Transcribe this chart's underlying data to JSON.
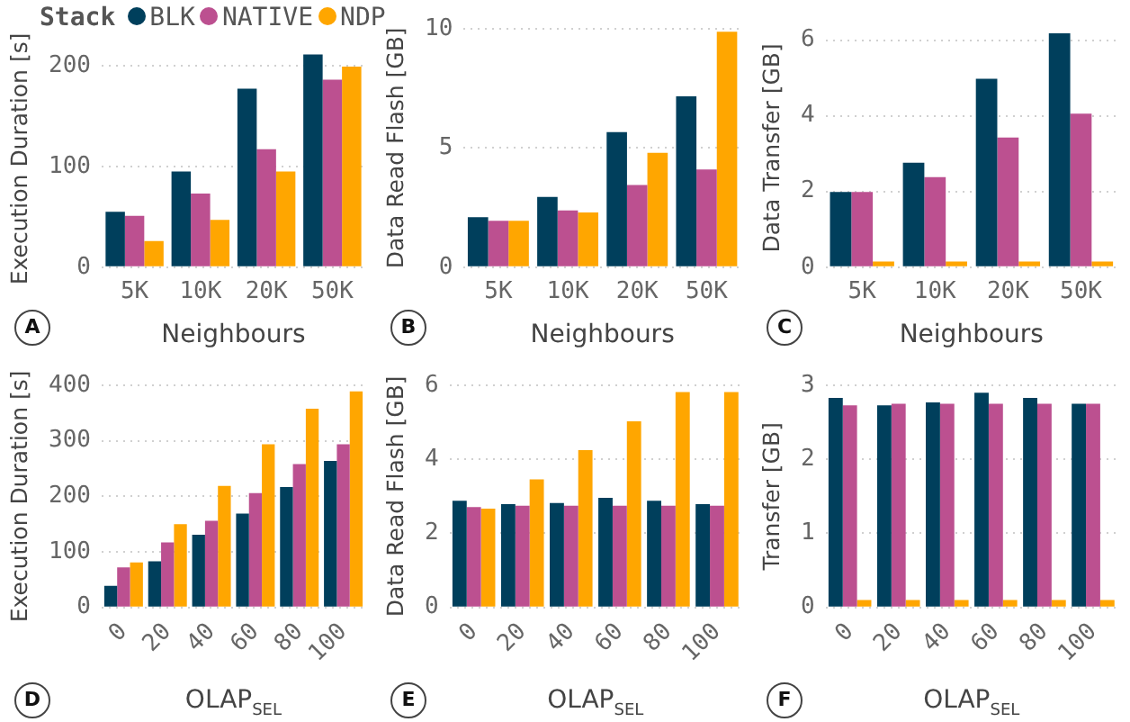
{
  "chart_data": [
    {
      "type": "bar",
      "categories": [
        "5K",
        "10K",
        "20K",
        "50K"
      ],
      "xlabel": "Neighbours",
      "ylabel": "Execution Duration [s]",
      "ylim": [
        0,
        215
      ],
      "yticks": [
        0,
        100,
        200
      ],
      "grid": "y",
      "legend": "top",
      "legend_title": "Stack",
      "annotations": [
        "A"
      ],
      "series": [
        {
          "name": "BLK",
          "color": "#003f5c",
          "values": [
            55,
            95,
            177,
            211
          ]
        },
        {
          "name": "NATIVE",
          "color": "#bc5090",
          "values": [
            51,
            73,
            117,
            186
          ]
        },
        {
          "name": "NDP",
          "color": "#ffa600",
          "values": [
            26,
            47,
            95,
            199
          ]
        }
      ]
    },
    {
      "type": "bar",
      "categories": [
        "5K",
        "10K",
        "20K",
        "50K"
      ],
      "xlabel": "Neighbours",
      "ylabel": "Data Read Flash [GB]",
      "ylim": [
        0,
        10
      ],
      "yticks": [
        0,
        5,
        10
      ],
      "grid": "y",
      "annotations": [
        "B"
      ],
      "series": [
        {
          "color": "#003f5c",
          "values": [
            2.1,
            2.95,
            5.67,
            7.17
          ]
        },
        {
          "color": "#bc5090",
          "values": [
            1.95,
            2.38,
            3.45,
            4.1
          ]
        },
        {
          "color": "#ffa600",
          "values": [
            1.95,
            2.3,
            4.8,
            9.88
          ]
        }
      ]
    },
    {
      "type": "bar",
      "categories": [
        "5K",
        "10K",
        "20K",
        "50K"
      ],
      "xlabel": "Neighbours",
      "ylabel": "Data Transfer [GB]",
      "ylim": [
        0,
        6.3
      ],
      "yticks": [
        0,
        2,
        4,
        6
      ],
      "grid": "y",
      "annotations": [
        "C"
      ],
      "series": [
        {
          "color": "#003f5c",
          "values": [
            1.99,
            2.76,
            4.98,
            6.18
          ]
        },
        {
          "color": "#bc5090",
          "values": [
            1.99,
            2.38,
            3.43,
            4.06
          ]
        },
        {
          "color": "#ffa600",
          "values": [
            0.15,
            0.15,
            0.15,
            0.15
          ]
        }
      ]
    },
    {
      "type": "bar",
      "categories": [
        "0",
        "20",
        "40",
        "60",
        "80",
        "100"
      ],
      "xlabel": "OLAP$_{SEL}$",
      "ylabel": "Execution Duration [s]",
      "ylim": [
        0,
        400
      ],
      "yticks": [
        0,
        100,
        200,
        300,
        400
      ],
      "grid": "y",
      "annotations": [
        "D"
      ],
      "series": [
        {
          "color": "#003f5c",
          "values": [
            39,
            83,
            131,
            169,
            217,
            264
          ]
        },
        {
          "color": "#bc5090",
          "values": [
            72,
            117,
            156,
            206,
            258,
            294
          ]
        },
        {
          "color": "#ffa600",
          "values": [
            81,
            150,
            219,
            294,
            358,
            389
          ]
        }
      ]
    },
    {
      "type": "bar",
      "categories": [
        "0",
        "20",
        "40",
        "60",
        "80",
        "100"
      ],
      "xlabel": "OLAP$_{SEL}$",
      "ylabel": "Data Read Flash [GB]",
      "ylim": [
        0,
        6
      ],
      "yticks": [
        0,
        2,
        4,
        6
      ],
      "grid": "y",
      "annotations": [
        "E"
      ],
      "series": [
        {
          "color": "#003f5c",
          "values": [
            2.88,
            2.79,
            2.82,
            2.96,
            2.88,
            2.79
          ]
        },
        {
          "color": "#bc5090",
          "values": [
            2.71,
            2.75,
            2.75,
            2.75,
            2.75,
            2.75
          ]
        },
        {
          "color": "#ffa600",
          "values": [
            2.67,
            3.46,
            4.25,
            5.03,
            5.82,
            5.82
          ]
        }
      ]
    },
    {
      "type": "bar",
      "categories": [
        "0",
        "20",
        "40",
        "60",
        "80",
        "100"
      ],
      "xlabel": "OLAP$_{SEL}$",
      "ylabel": "Transfer [GB]",
      "ylim": [
        0,
        3
      ],
      "yticks": [
        0,
        1,
        2,
        3
      ],
      "grid": "y",
      "annotations": [
        "F"
      ],
      "series": [
        {
          "color": "#003f5c",
          "values": [
            2.83,
            2.73,
            2.77,
            2.9,
            2.83,
            2.75
          ]
        },
        {
          "color": "#bc5090",
          "values": [
            2.73,
            2.75,
            2.75,
            2.75,
            2.75,
            2.75
          ]
        },
        {
          "color": "#ffa600",
          "values": [
            0.1,
            0.1,
            0.1,
            0.1,
            0.1,
            0.1
          ]
        }
      ]
    }
  ]
}
